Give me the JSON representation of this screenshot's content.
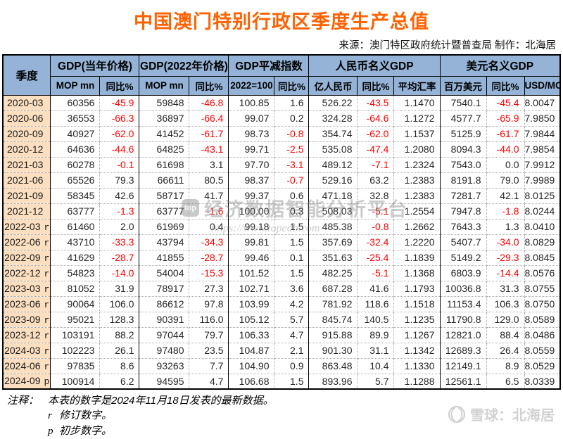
{
  "title": "中国澳门特别行政区季度生产总值",
  "source_line": "来源：澳门特区政府统计暨普查局  制作：北海居",
  "table": {
    "quarter_header": "季度",
    "groups": [
      {
        "label": "GDP(当年价格)",
        "cols": [
          "MOP mn",
          "同比%"
        ]
      },
      {
        "label": "GDP(2022年价格)",
        "cols": [
          "MOP mn",
          "同比%"
        ]
      },
      {
        "label": "GDP平减指数",
        "cols": [
          "2022=100",
          "同比%"
        ]
      },
      {
        "label": "人民币名义GDP",
        "cols": [
          "亿人民币",
          "同比%",
          "平均汇率"
        ]
      },
      {
        "label": "美元名义GDP",
        "cols": [
          "百万美元",
          "同比%",
          "USD/MOP"
        ]
      }
    ],
    "rows": [
      {
        "quarter": "2020-03",
        "suffix": "",
        "values": [
          "60356",
          "-45.9",
          "59848",
          "-46.8",
          "100.85",
          "1.6",
          "526.22",
          "-43.5",
          "1.1470",
          "7540.1",
          "-45.4",
          "8.0047"
        ]
      },
      {
        "quarter": "2020-06",
        "suffix": "",
        "values": [
          "36553",
          "-66.3",
          "36897",
          "-66.4",
          "99.07",
          "0.2",
          "324.28",
          "-64.6",
          "1.1272",
          "4577.7",
          "-65.9",
          "7.9850"
        ]
      },
      {
        "quarter": "2020-09",
        "suffix": "",
        "values": [
          "40927",
          "-62.0",
          "41452",
          "-61.7",
          "98.73",
          "-0.8",
          "354.74",
          "-62.0",
          "1.1537",
          "5125.9",
          "-61.7",
          "7.9844"
        ]
      },
      {
        "quarter": "2020-12",
        "suffix": "",
        "values": [
          "64636",
          "-44.6",
          "64825",
          "-43.1",
          "99.71",
          "-2.5",
          "535.08",
          "-47.4",
          "1.2080",
          "8094.3",
          "-44.0",
          "7.9854"
        ]
      },
      {
        "quarter": "2021-03",
        "suffix": "",
        "values": [
          "60278",
          "-0.1",
          "61698",
          "3.1",
          "97.70",
          "-3.1",
          "489.12",
          "-7.1",
          "1.2324",
          "7543.0",
          "0.0",
          "7.9912"
        ]
      },
      {
        "quarter": "2021-06",
        "suffix": "",
        "values": [
          "65526",
          "79.3",
          "66611",
          "80.5",
          "98.37",
          "-0.7",
          "529.16",
          "63.2",
          "1.2383",
          "8191.8",
          "79.0",
          "7.9989"
        ]
      },
      {
        "quarter": "2021-09",
        "suffix": "",
        "values": [
          "58345",
          "42.6",
          "58717",
          "41.7",
          "99.37",
          "0.6",
          "471.18",
          "32.8",
          "1.2383",
          "7281.7",
          "42.1",
          "8.0125"
        ]
      },
      {
        "quarter": "2021-12",
        "suffix": "",
        "values": [
          "63777",
          "-1.3",
          "63777",
          "-1.6",
          "100.00",
          "0.3",
          "508.03",
          "-5.1",
          "1.2554",
          "7947.8",
          "-1.8",
          "8.0244"
        ]
      },
      {
        "quarter": "2022-03",
        "suffix": "r",
        "values": [
          "61460",
          "2.0",
          "61969",
          "0.4",
          "99.18",
          "1.5",
          "485.38",
          "-0.8",
          "1.2662",
          "7643.3",
          "1.3",
          "8.0410"
        ]
      },
      {
        "quarter": "2022-06",
        "suffix": "r",
        "values": [
          "43710",
          "-33.3",
          "43794",
          "-34.3",
          "99.81",
          "1.5",
          "357.69",
          "-32.4",
          "1.2220",
          "5407.7",
          "-34.0",
          "8.0829"
        ]
      },
      {
        "quarter": "2022-09",
        "suffix": "r",
        "values": [
          "41629",
          "-28.7",
          "41855",
          "-28.7",
          "99.46",
          "0.1",
          "351.63",
          "-25.4",
          "1.1839",
          "5149.2",
          "-29.3",
          "8.0845"
        ]
      },
      {
        "quarter": "2022-12",
        "suffix": "r",
        "values": [
          "54823",
          "-14.0",
          "54004",
          "-15.3",
          "101.52",
          "1.5",
          "482.25",
          "-5.1",
          "1.1368",
          "6803.9",
          "-14.4",
          "8.0576"
        ]
      },
      {
        "quarter": "2023-03",
        "suffix": "r",
        "values": [
          "81052",
          "31.9",
          "78917",
          "27.3",
          "102.71",
          "3.6",
          "687.28",
          "41.6",
          "1.1793",
          "10036.8",
          "31.3",
          "8.0755"
        ]
      },
      {
        "quarter": "2023-06",
        "suffix": "r",
        "values": [
          "90064",
          "106.0",
          "86612",
          "97.8",
          "103.99",
          "4.2",
          "781.92",
          "118.6",
          "1.1518",
          "11153.4",
          "106.3",
          "8.0750"
        ]
      },
      {
        "quarter": "2023-09",
        "suffix": "r",
        "values": [
          "95021",
          "128.3",
          "90391",
          "116.0",
          "105.12",
          "5.7",
          "845.74",
          "140.5",
          "1.1235",
          "11790.8",
          "129.0",
          "8.0589"
        ]
      },
      {
        "quarter": "2023-12",
        "suffix": "r",
        "values": [
          "103191",
          "88.2",
          "97044",
          "79.7",
          "106.33",
          "4.7",
          "915.88",
          "89.9",
          "1.1267",
          "12821.0",
          "88.4",
          "8.0486"
        ]
      },
      {
        "quarter": "2024-03",
        "suffix": "r",
        "values": [
          "102223",
          "26.1",
          "97480",
          "23.5",
          "104.87",
          "2.1",
          "901.30",
          "31.1",
          "1.1342",
          "12689.3",
          "26.4",
          "8.0559"
        ]
      },
      {
        "quarter": "2024-06",
        "suffix": "r",
        "values": [
          "97835",
          "8.6",
          "93263",
          "7.7",
          "104.90",
          "0.9",
          "863.48",
          "10.4",
          "1.1330",
          "12149.1",
          "8.9",
          "8.0529"
        ]
      },
      {
        "quarter": "2024-09",
        "suffix": "p",
        "values": [
          "100914",
          "6.2",
          "94595",
          "4.7",
          "106.68",
          "1.5",
          "893.96",
          "5.7",
          "1.1288",
          "12561.1",
          "6.5",
          "8.0339"
        ]
      }
    ]
  },
  "notes": {
    "label": "注释：",
    "line1": "本表的数字是2024年11月18日发表的最新数据。",
    "r_mark": "r",
    "r_text": "修订数字。",
    "p_mark": "p",
    "p_text": "初步数字。"
  },
  "watermark_center": {
    "logo_text": "top",
    "text": "经济数据智能分析平台",
    "url": "https://www.topedb.com"
  },
  "watermark_bottom": {
    "text": "雪球：北海居"
  },
  "colors": {
    "title": "#FF6200",
    "header_bg": "#95B3D7",
    "quarter_col_bg": "#FBDFC0",
    "negative_value": "#FF0000",
    "watermark_gray": "#9A9A9A"
  }
}
